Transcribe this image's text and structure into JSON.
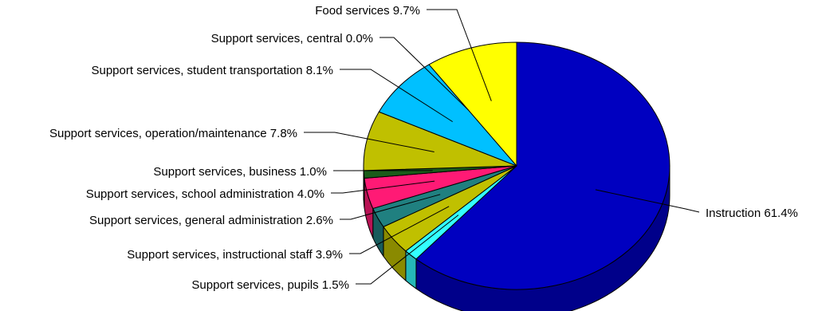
{
  "chart_data": {
    "type": "pie",
    "style": "3d-pie",
    "legend": "none",
    "slices": [
      {
        "label": "Instruction",
        "value": 61.4,
        "value_label": "61.4%",
        "color": "#0000c0"
      },
      {
        "label": "Support services, pupils",
        "value": 1.5,
        "value_label": "1.5%",
        "color": "#33ffff"
      },
      {
        "label": "Support services, instructional staff",
        "value": 3.9,
        "value_label": "3.9%",
        "color": "#c0c000"
      },
      {
        "label": "Support services, general administration",
        "value": 2.6,
        "value_label": "2.6%",
        "color": "#208080"
      },
      {
        "label": "Support services, school administration",
        "value": 4.0,
        "value_label": "4.0%",
        "color": "#ff1a75"
      },
      {
        "label": "Support services, business",
        "value": 1.0,
        "value_label": "1.0%",
        "color": "#1a5c1a"
      },
      {
        "label": "Support services, operation/maintenance",
        "value": 7.8,
        "value_label": "7.8%",
        "color": "#c0c000"
      },
      {
        "label": "Support services, student transportation",
        "value": 8.1,
        "value_label": "8.1%",
        "color": "#00c0ff"
      },
      {
        "label": "Support services, central",
        "value": 0.0,
        "value_label": "0.0%",
        "color": "#6666ff"
      },
      {
        "label": "Food services",
        "value": 9.7,
        "value_label": "9.7%",
        "color": "#ffff00"
      }
    ]
  }
}
